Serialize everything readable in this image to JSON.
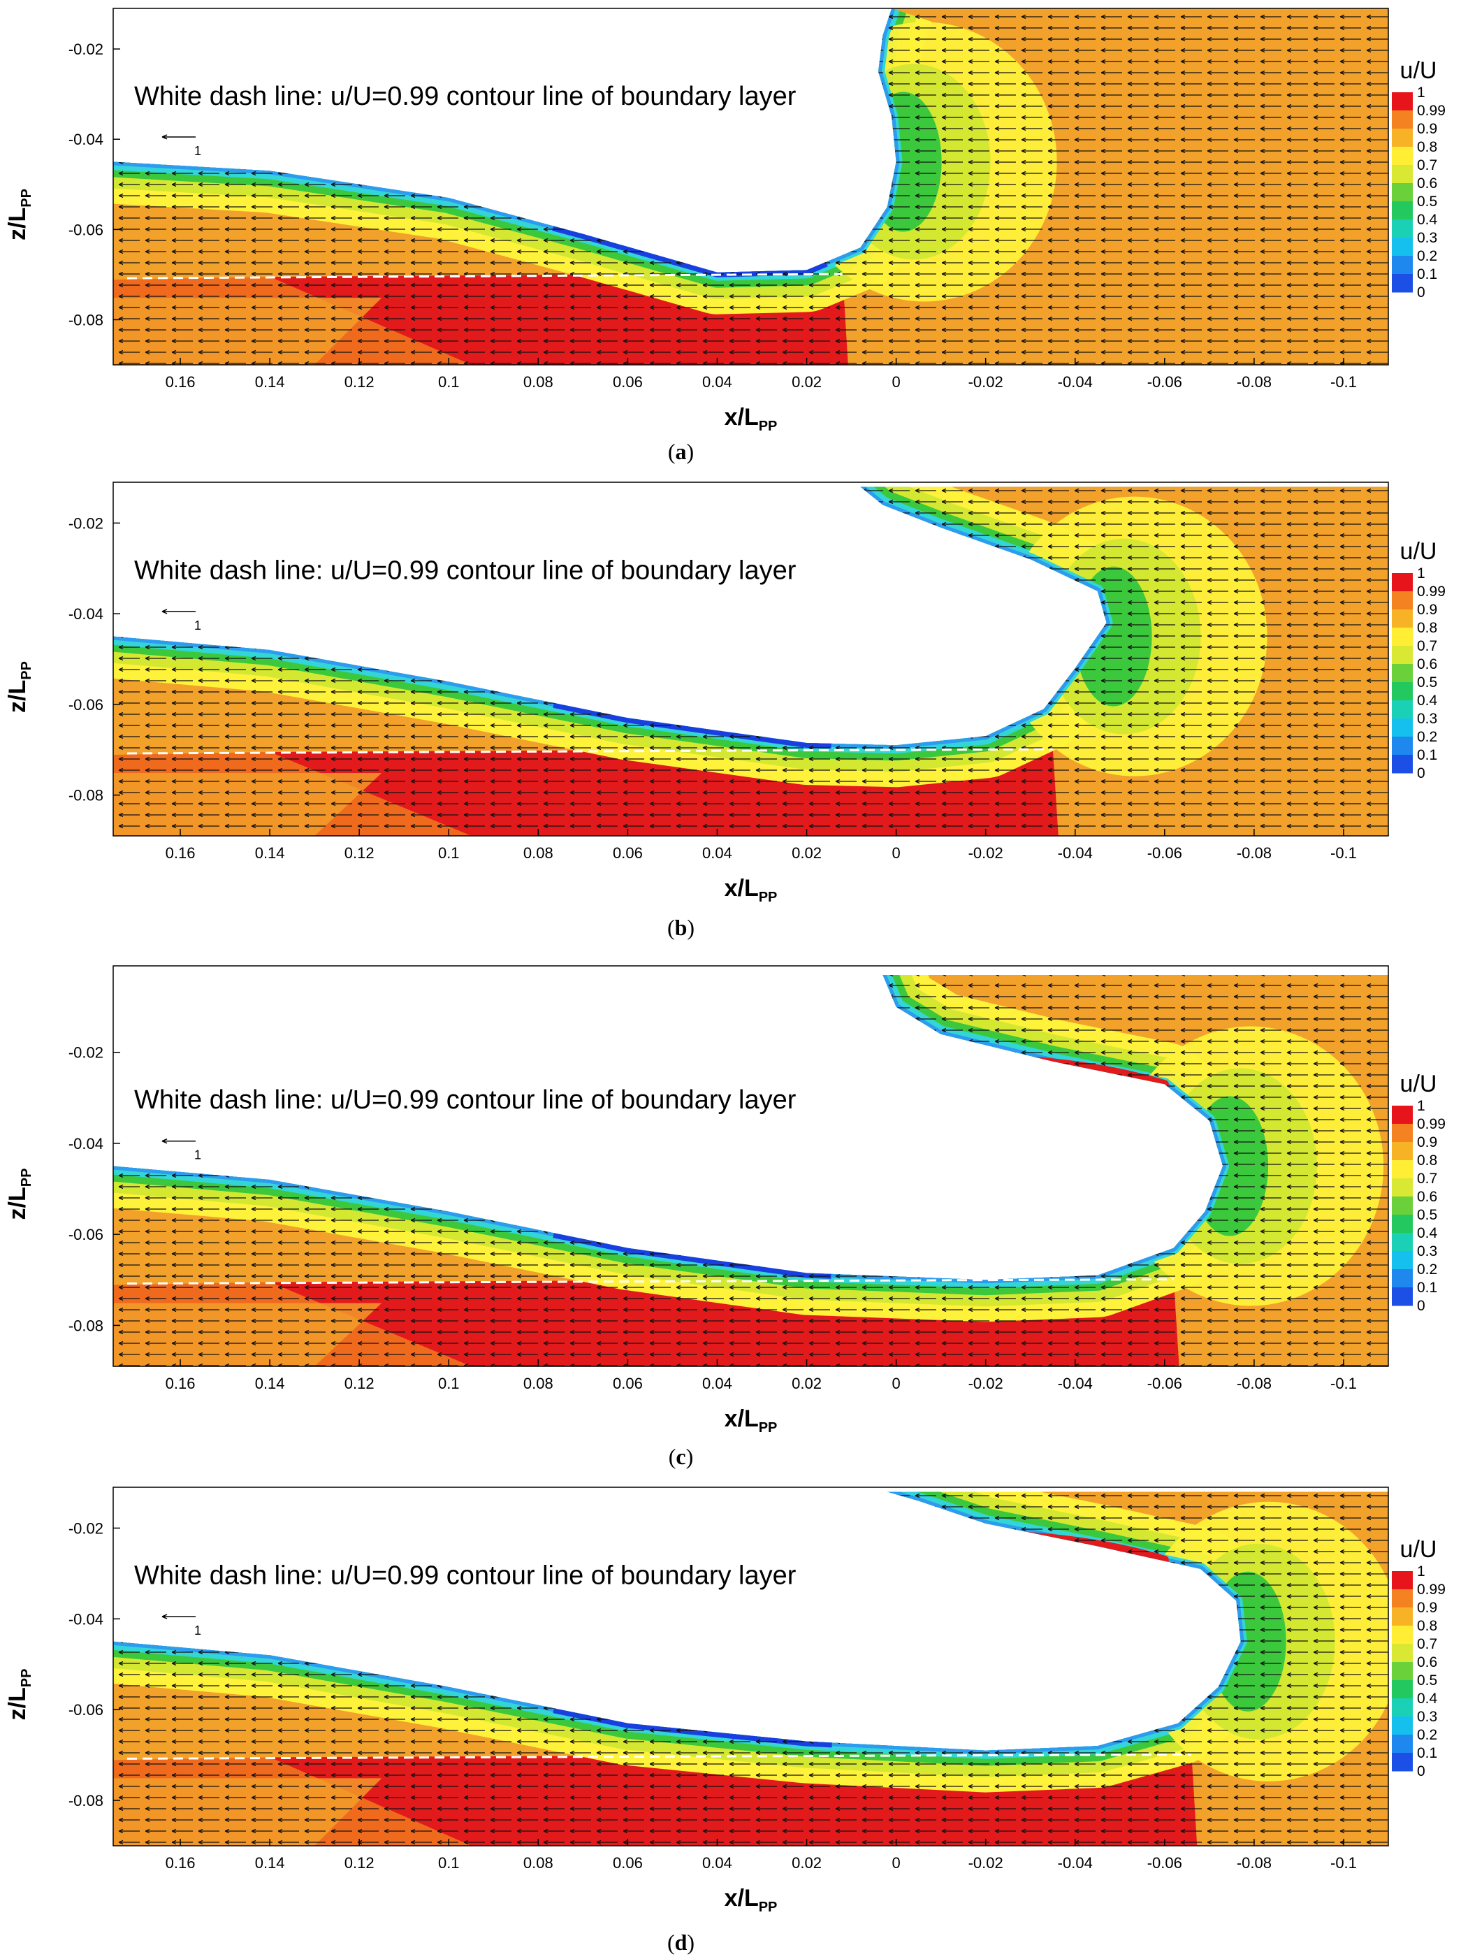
{
  "chart_data": [
    {
      "type": "contour",
      "panel_label": "a",
      "annotation": "White dash line: u/U=0.99 contour line of boundary layer",
      "xlabel": "x/L",
      "xlabel_sub": "PP",
      "ylabel": "z/L",
      "ylabel_sub": "PP",
      "xlim": [
        0.175,
        -0.11
      ],
      "ylim": [
        -0.09,
        -0.011
      ],
      "x_ticks": [
        "0.16",
        "0.14",
        "0.12",
        "0.1",
        "0.08",
        "0.06",
        "0.04",
        "0.02",
        "0",
        "-0.02",
        "-0.04",
        "-0.06",
        "-0.08",
        "-0.1"
      ],
      "y_ticks": [
        "-0.02",
        "-0.04",
        "-0.06",
        "-0.08"
      ],
      "reference_vector_label": "1",
      "wave_surface": [
        [
          0.175,
          -0.045
        ],
        [
          0.14,
          -0.047
        ],
        [
          0.1,
          -0.053
        ],
        [
          0.07,
          -0.061
        ],
        [
          0.04,
          -0.0695
        ],
        [
          0.02,
          -0.069
        ],
        [
          0.008,
          -0.064
        ],
        [
          0.002,
          -0.055
        ],
        [
          0.0,
          -0.045
        ],
        [
          0.001,
          -0.035
        ],
        [
          0.004,
          -0.025
        ],
        [
          0.003,
          -0.017
        ],
        [
          0.001,
          -0.011
        ]
      ],
      "wave_crest_x": 0.0,
      "wave_front_x": 0.012,
      "legend": {
        "title": "u/U",
        "levels": [
          "1",
          "0.99",
          "0.9",
          "0.8",
          "0.7",
          "0.6",
          "0.5",
          "0.4",
          "0.3",
          "0.2",
          "0.1",
          "0"
        ]
      }
    },
    {
      "type": "contour",
      "panel_label": "b",
      "annotation": "White dash line: u/U=0.99 contour line of boundary layer",
      "xlabel": "x/L",
      "xlabel_sub": "PP",
      "ylabel": "z/L",
      "ylabel_sub": "PP",
      "xlim": [
        0.175,
        -0.11
      ],
      "ylim": [
        -0.089,
        -0.011
      ],
      "x_ticks": [
        "0.16",
        "0.14",
        "0.12",
        "0.1",
        "0.08",
        "0.06",
        "0.04",
        "0.02",
        "0",
        "-0.02",
        "-0.04",
        "-0.06",
        "-0.08",
        "-0.1"
      ],
      "y_ticks": [
        "-0.02",
        "-0.04",
        "-0.06",
        "-0.08"
      ],
      "reference_vector_label": "1",
      "wave_surface": [
        [
          0.175,
          -0.045
        ],
        [
          0.14,
          -0.048
        ],
        [
          0.1,
          -0.055
        ],
        [
          0.06,
          -0.063
        ],
        [
          0.02,
          -0.0685
        ],
        [
          0.0,
          -0.069
        ],
        [
          -0.02,
          -0.067
        ],
        [
          -0.033,
          -0.061
        ],
        [
          -0.04,
          -0.052
        ],
        [
          -0.047,
          -0.042
        ],
        [
          -0.045,
          -0.035
        ],
        [
          -0.03,
          -0.028
        ],
        [
          -0.01,
          -0.021
        ],
        [
          0.003,
          -0.016
        ],
        [
          0.008,
          -0.012
        ]
      ],
      "wave_crest_x": -0.047,
      "wave_front_x": -0.035,
      "legend": {
        "title": "u/U",
        "levels": [
          "1",
          "0.99",
          "0.9",
          "0.8",
          "0.7",
          "0.6",
          "0.5",
          "0.4",
          "0.3",
          "0.2",
          "0.1",
          "0"
        ]
      }
    },
    {
      "type": "contour",
      "panel_label": "c",
      "annotation": "White dash line: u/U=0.99 contour line of boundary layer",
      "xlabel": "x/L",
      "xlabel_sub": "PP",
      "ylabel": "z/L",
      "ylabel_sub": "PP",
      "xlim": [
        0.175,
        -0.11
      ],
      "ylim": [
        -0.089,
        -0.001
      ],
      "x_ticks": [
        "0.16",
        "0.14",
        "0.12",
        "0.1",
        "0.08",
        "0.06",
        "0.04",
        "0.02",
        "0",
        "-0.02",
        "-0.04",
        "-0.06",
        "-0.08",
        "-0.1"
      ],
      "y_ticks": [
        "-0.02",
        "-0.04",
        "-0.06",
        "-0.08"
      ],
      "reference_vector_label": "1",
      "wave_surface": [
        [
          0.175,
          -0.045
        ],
        [
          0.14,
          -0.048
        ],
        [
          0.1,
          -0.055
        ],
        [
          0.06,
          -0.063
        ],
        [
          0.02,
          -0.0685
        ],
        [
          -0.02,
          -0.07
        ],
        [
          -0.045,
          -0.069
        ],
        [
          -0.062,
          -0.063
        ],
        [
          -0.069,
          -0.055
        ],
        [
          -0.073,
          -0.045
        ],
        [
          -0.07,
          -0.035
        ],
        [
          -0.06,
          -0.027
        ],
        [
          -0.035,
          -0.022
        ],
        [
          -0.01,
          -0.016
        ],
        [
          0.0,
          -0.01
        ],
        [
          0.003,
          -0.003
        ]
      ],
      "wave_crest_x": -0.073,
      "wave_front_x": -0.062,
      "legend": {
        "title": "u/U",
        "levels": [
          "1",
          "0.99",
          "0.9",
          "0.8",
          "0.7",
          "0.6",
          "0.5",
          "0.4",
          "0.3",
          "0.2",
          "0.1",
          "0"
        ]
      }
    },
    {
      "type": "contour",
      "panel_label": "d",
      "annotation": "White dash line: u/U=0.99 contour line of boundary layer",
      "xlabel": "x/L",
      "xlabel_sub": "PP",
      "ylabel": "z/L",
      "ylabel_sub": "PP",
      "xlim": [
        0.175,
        -0.11
      ],
      "ylim": [
        -0.09,
        -0.011
      ],
      "x_ticks": [
        "0.16",
        "0.14",
        "0.12",
        "0.1",
        "0.08",
        "0.06",
        "0.04",
        "0.02",
        "0",
        "-0.02",
        "-0.04",
        "-0.06",
        "-0.08",
        "-0.1"
      ],
      "y_ticks": [
        "-0.02",
        "-0.04",
        "-0.06",
        "-0.08"
      ],
      "reference_vector_label": "1",
      "wave_surface": [
        [
          0.175,
          -0.045
        ],
        [
          0.14,
          -0.048
        ],
        [
          0.1,
          -0.055
        ],
        [
          0.06,
          -0.063
        ],
        [
          0.02,
          -0.067
        ],
        [
          -0.02,
          -0.069
        ],
        [
          -0.045,
          -0.068
        ],
        [
          -0.063,
          -0.063
        ],
        [
          -0.072,
          -0.055
        ],
        [
          -0.077,
          -0.045
        ],
        [
          -0.076,
          -0.036
        ],
        [
          -0.068,
          -0.029
        ],
        [
          -0.045,
          -0.024
        ],
        [
          -0.02,
          -0.019
        ],
        [
          -0.005,
          -0.014
        ],
        [
          0.002,
          -0.012
        ]
      ],
      "wave_crest_x": -0.077,
      "wave_front_x": -0.066,
      "legend": {
        "title": "u/U",
        "levels": [
          "1",
          "0.99",
          "0.9",
          "0.8",
          "0.7",
          "0.6",
          "0.5",
          "0.4",
          "0.3",
          "0.2",
          "0.1",
          "0"
        ]
      }
    }
  ],
  "colors": {
    "red": "#e31a1c",
    "orange_red": "#f06a1e",
    "orange": "#f2a12b",
    "yellow": "#fff23a",
    "yellow_green": "#d4e832",
    "green": "#3cc83c",
    "cyan": "#33d6d6",
    "light_blue": "#2d9bef",
    "blue": "#1a3fe0",
    "legend_scale": [
      "#e8141c",
      "#f58220",
      "#f7b226",
      "#ffee33",
      "#d8e833",
      "#6ad13a",
      "#23c85e",
      "#1ad1b5",
      "#16c0ee",
      "#1e88ee",
      "#1b4fe6",
      "#2424d8"
    ]
  }
}
